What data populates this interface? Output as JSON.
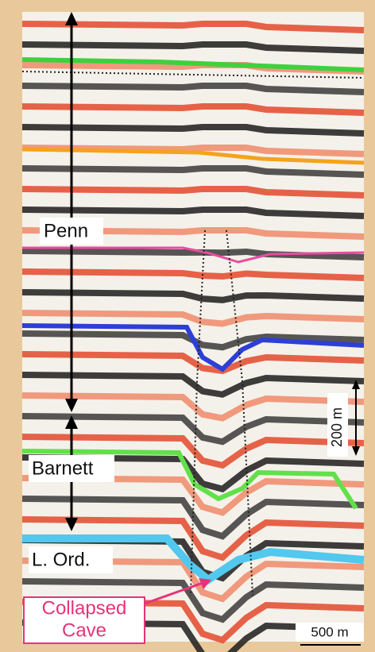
{
  "labels": {
    "penn": "Penn",
    "barnett": "Barnett",
    "lower_ordovician": "L. Ord.",
    "collapsed_cave": [
      "Collapsed",
      "Cave"
    ],
    "vertical_scale": "200 m",
    "horizontal_scale": "500 m"
  }
}
